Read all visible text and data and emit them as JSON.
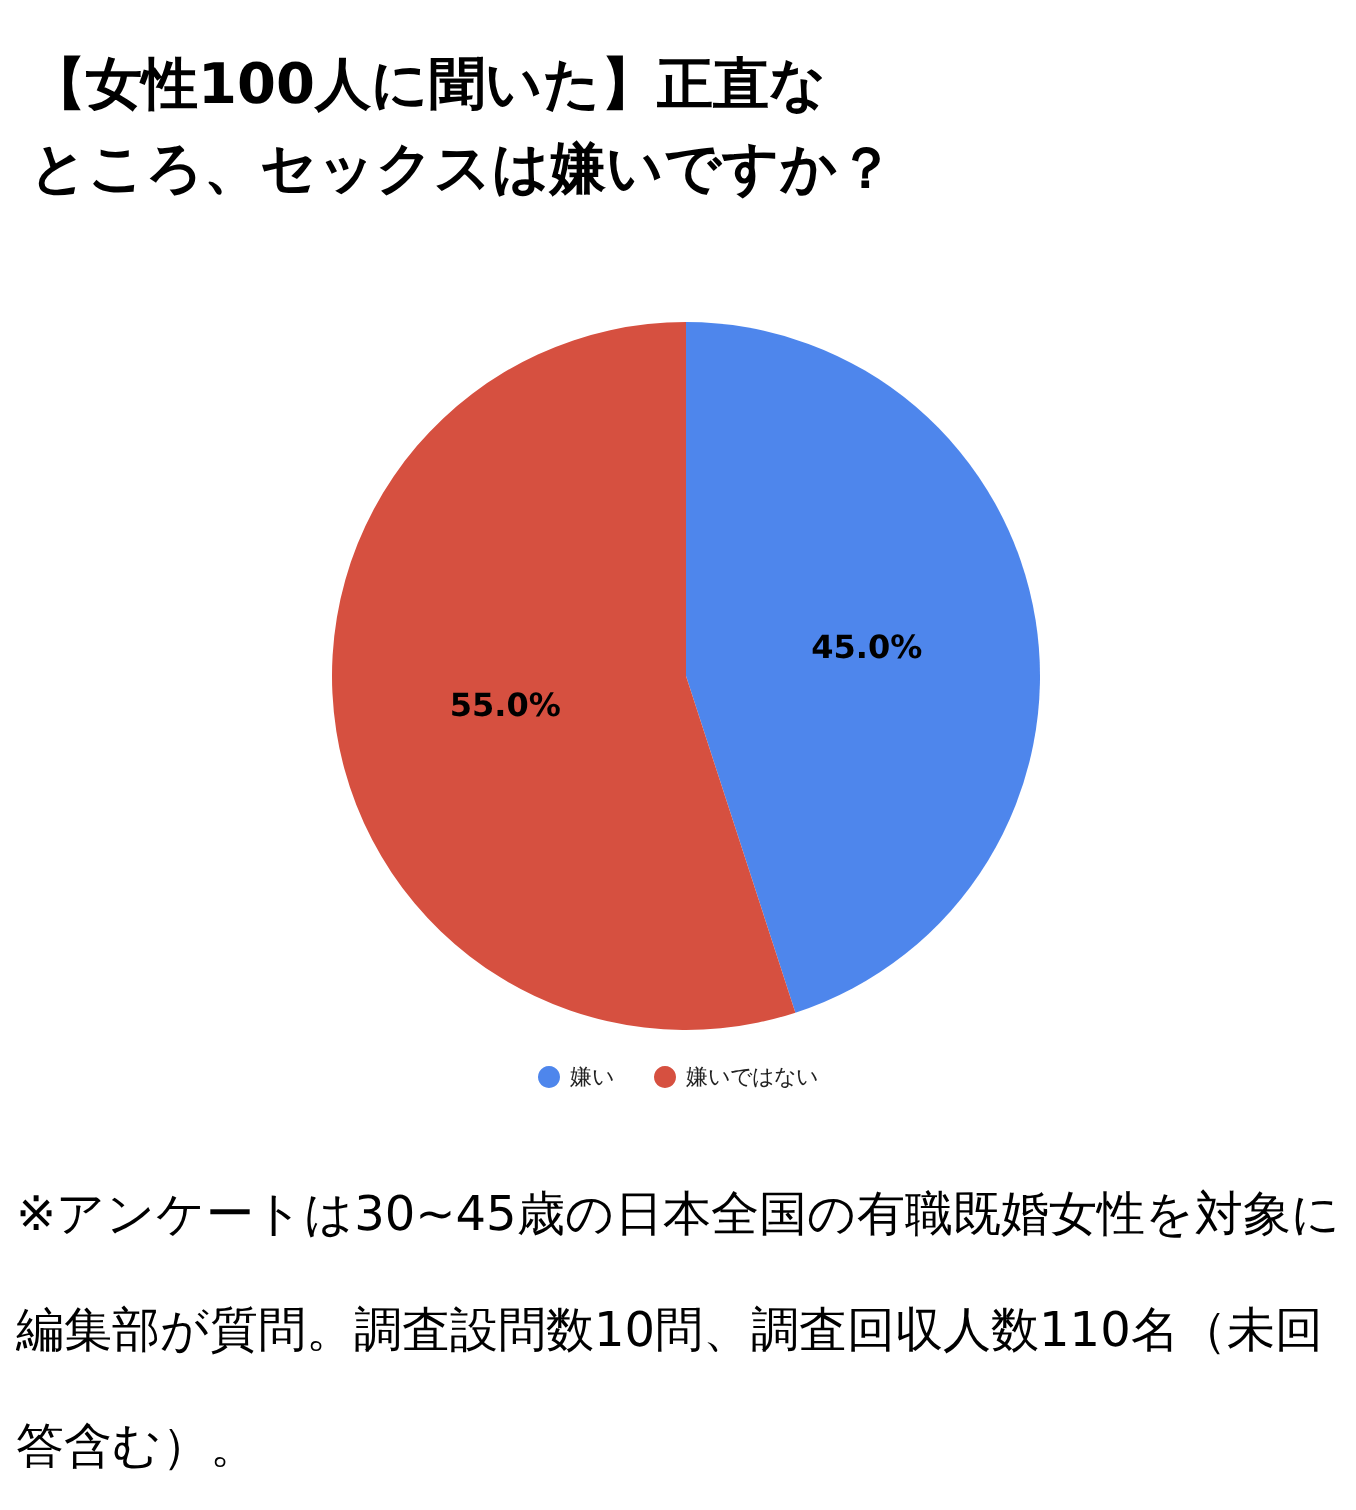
{
  "chart_data": {
    "type": "pie",
    "title": "【女性100人に聞いた】正直なところ、セックスは嫌いですか？",
    "categories": [
      "嫌い",
      "嫌いではない"
    ],
    "values": [
      45.0,
      55.0
    ],
    "colors": [
      "#4e86ec",
      "#d65040"
    ],
    "value_labels": [
      "45.0%",
      "55.0%"
    ],
    "legend": "bottom",
    "annotations": [
      "※アンケートは30~45歳の日本全国の有職既婚女性を対象に編集部が質問。調査設問数10問、調査回収人数110名（未回答含む）。"
    ]
  }
}
